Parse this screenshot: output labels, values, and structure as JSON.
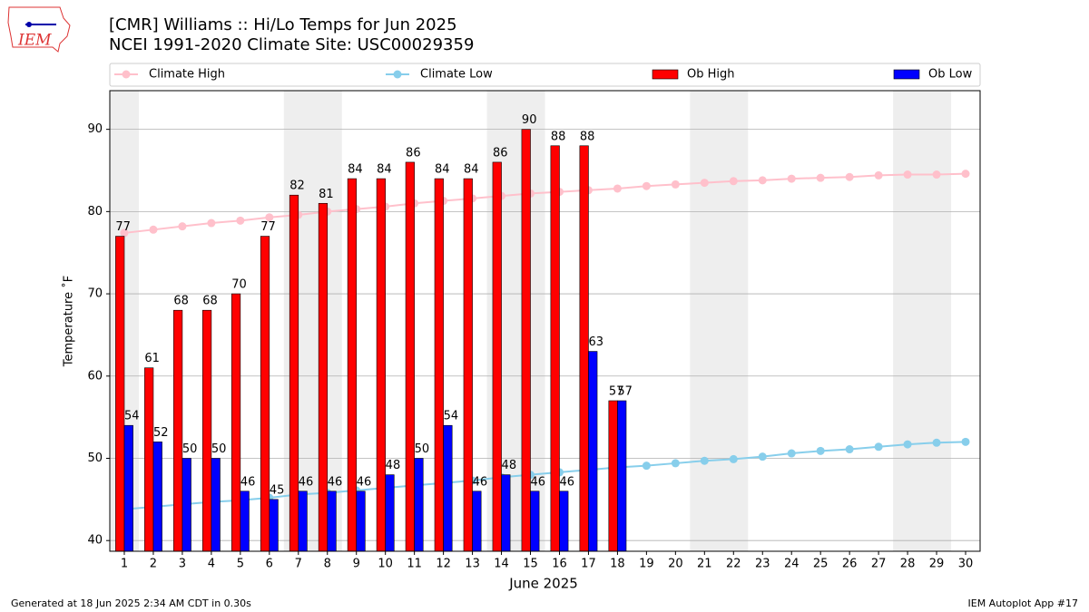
{
  "logo": "IEM",
  "footer": {
    "left": "Generated at 18 Jun 2025 2:34 AM CDT in 0.30s",
    "right": "IEM Autoplot App #17"
  },
  "chart_data": {
    "type": "bar",
    "title": "[CMR] Williams :: Hi/Lo Temps for Jun 2025",
    "subtitle": "NCEI 1991-2020 Climate Site: USC00029359",
    "x_label": "June 2025",
    "y_label": "Temperature ˚F",
    "x": [
      1,
      2,
      3,
      4,
      5,
      6,
      7,
      8,
      9,
      10,
      11,
      12,
      13,
      14,
      15,
      16,
      17,
      18,
      19,
      20,
      21,
      22,
      23,
      24,
      25,
      26,
      27,
      28,
      29,
      30
    ],
    "xlim": [
      0.5,
      30.5
    ],
    "xticks": [
      1,
      2,
      3,
      4,
      5,
      6,
      7,
      8,
      9,
      10,
      11,
      12,
      13,
      14,
      15,
      16,
      17,
      18,
      19,
      20,
      21,
      22,
      23,
      24,
      25,
      26,
      27,
      28,
      29,
      30
    ],
    "ylim": [
      38.7,
      94.7
    ],
    "yticks": [
      40,
      50,
      60,
      70,
      80,
      90
    ],
    "grid": true,
    "legend": "top",
    "series": [
      {
        "name": "Climate High",
        "type": "line",
        "color": "#ffc0cb",
        "values": [
          77.4,
          77.8,
          78.2,
          78.6,
          78.9,
          79.3,
          79.6,
          80.0,
          80.3,
          80.6,
          81.0,
          81.3,
          81.6,
          81.9,
          82.2,
          82.4,
          82.6,
          82.8,
          83.1,
          83.3,
          83.5,
          83.7,
          83.8,
          84.0,
          84.1,
          84.2,
          84.4,
          84.5,
          84.5,
          84.6
        ]
      },
      {
        "name": "Climate Low",
        "type": "line",
        "color": "#87ceeb",
        "values": [
          43.8,
          44.1,
          44.4,
          44.7,
          44.9,
          45.2,
          45.6,
          45.8,
          46.1,
          46.4,
          46.7,
          47.0,
          47.3,
          47.7,
          48.0,
          48.3,
          48.6,
          48.9,
          49.1,
          49.4,
          49.7,
          49.9,
          50.2,
          50.6,
          50.9,
          51.1,
          51.4,
          51.7,
          51.9,
          52.0
        ]
      },
      {
        "name": "Ob High",
        "type": "bar",
        "color": "#ff0000",
        "values": [
          77,
          61,
          68,
          68,
          70,
          77,
          82,
          81,
          84,
          84,
          86,
          84,
          84,
          86,
          90,
          88,
          88,
          57,
          null,
          null,
          null,
          null,
          null,
          null,
          null,
          null,
          null,
          null,
          null,
          null
        ]
      },
      {
        "name": "Ob Low",
        "type": "bar",
        "color": "#0000ff",
        "values": [
          54,
          52,
          50,
          50,
          46,
          45,
          46,
          46,
          46,
          48,
          50,
          54,
          46,
          48,
          46,
          46,
          63,
          57,
          null,
          null,
          null,
          null,
          null,
          null,
          null,
          null,
          null,
          null,
          null,
          null
        ]
      }
    ]
  }
}
